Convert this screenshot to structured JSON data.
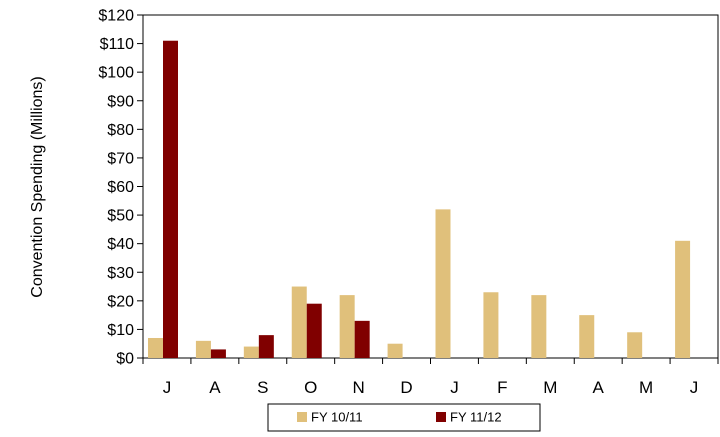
{
  "chart_data": {
    "type": "bar",
    "title": "",
    "xlabel": "",
    "ylabel": "Convention Spending (Millions)",
    "categories": [
      "J",
      "A",
      "S",
      "O",
      "N",
      "D",
      "J",
      "F",
      "M",
      "A",
      "M",
      "J"
    ],
    "series": [
      {
        "name": "FY 10/11",
        "color": "#E0C07B",
        "values": [
          7,
          6,
          4,
          25,
          22,
          5,
          52,
          23,
          22,
          15,
          9,
          41
        ]
      },
      {
        "name": "FY 11/12",
        "color": "#800000",
        "values": [
          111,
          3,
          8,
          19,
          13,
          null,
          null,
          null,
          null,
          null,
          null,
          null
        ]
      }
    ],
    "ylim": [
      0,
      120
    ],
    "yticks": [
      0,
      10,
      20,
      30,
      40,
      50,
      60,
      70,
      80,
      90,
      100,
      110,
      120
    ],
    "ytick_labels": [
      "$0",
      "$10",
      "$20",
      "$30",
      "$40",
      "$50",
      "$60",
      "$70",
      "$80",
      "$90",
      "$100",
      "$110",
      "$120"
    ],
    "grid": false,
    "legend_position": "bottom"
  }
}
